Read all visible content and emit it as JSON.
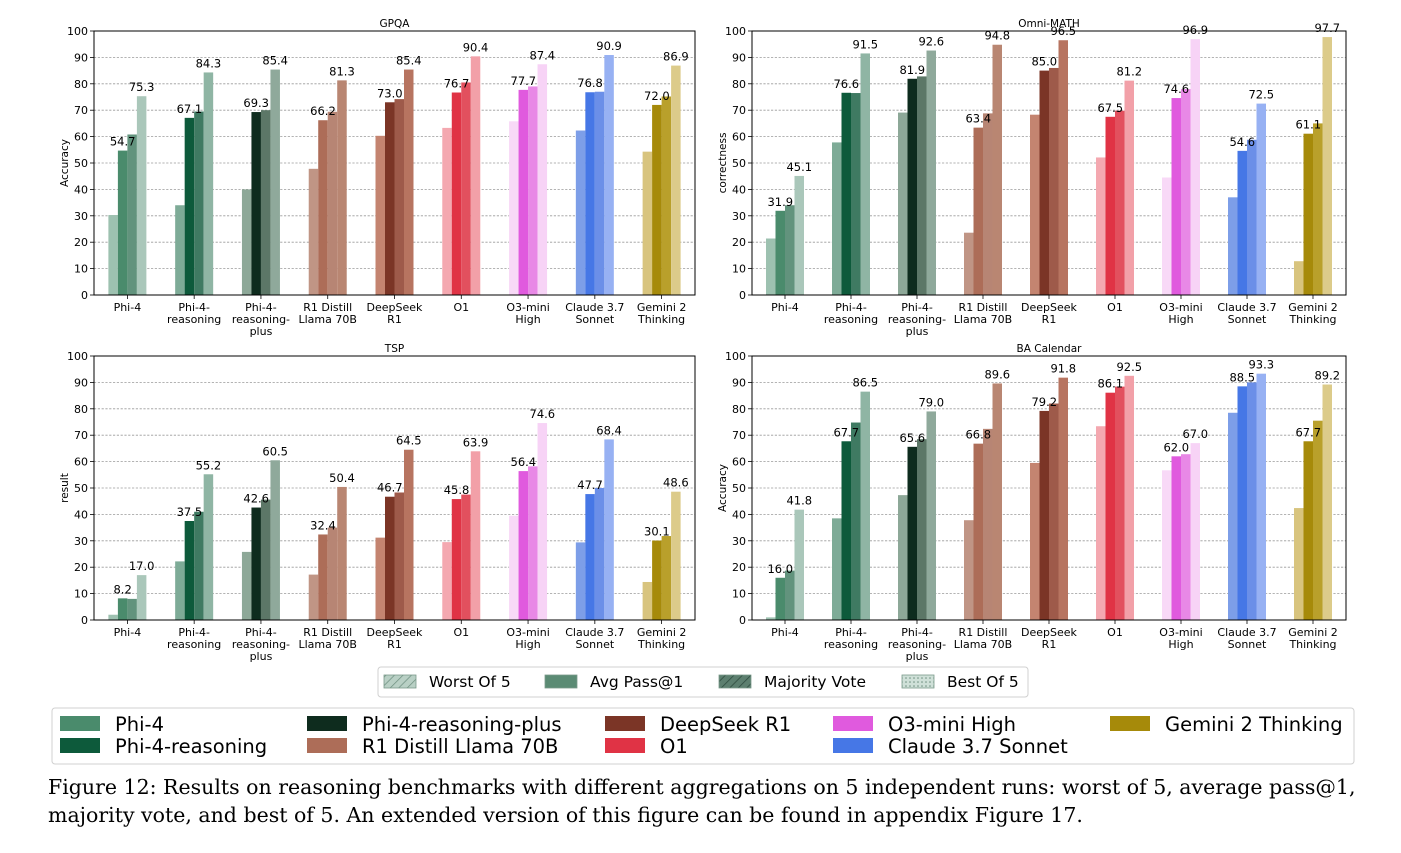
{
  "chart_data": [
    {
      "type": "bar",
      "title": "GPQA",
      "ylabel": "Accuracy",
      "ylim": [
        0,
        100
      ],
      "yticks": [
        "0",
        "10",
        "20",
        "30",
        "40",
        "50",
        "60",
        "70",
        "80",
        "90",
        "100"
      ],
      "categories": [
        "Phi-4",
        "Phi-4-\nreasoning",
        "Phi-4-\nreasoning-\nplus",
        "R1 Distill\nLlama 70B",
        "DeepSeek\nR1",
        "O1",
        "O3-mini\nHigh",
        "Claude 3.7\nSonnet",
        "Gemini 2\nThinking"
      ],
      "series": [
        {
          "name": "Worst Of 5",
          "values": [
            30.3,
            34.0,
            40.0,
            47.8,
            60.3,
            63.3,
            65.8,
            62.3,
            54.3
          ]
        },
        {
          "name": "Avg Pass@1",
          "values": [
            54.7,
            67.1,
            69.3,
            66.2,
            73.0,
            76.7,
            77.7,
            76.8,
            72.0
          ]
        },
        {
          "name": "Majority Vote",
          "values": [
            60.8,
            69.5,
            70.0,
            69.4,
            74.2,
            80.5,
            79.0,
            77.0,
            75.2
          ]
        },
        {
          "name": "Best Of 5",
          "values": [
            75.3,
            84.3,
            85.4,
            81.3,
            85.4,
            90.4,
            87.4,
            90.9,
            86.9
          ]
        }
      ],
      "labels": [
        "54.7",
        "75.3",
        "67.1",
        "84.3",
        "69.3",
        "85.4",
        "66.2",
        "81.3",
        "73.0",
        "85.4",
        "76.7",
        "90.4",
        "77.7",
        "87.4",
        "76.8",
        "90.9",
        "72.0",
        "86.9"
      ]
    },
    {
      "type": "bar",
      "title": "Omni-MATH",
      "ylabel": "correctness",
      "ylim": [
        0,
        100
      ],
      "yticks": [
        "0",
        "10",
        "20",
        "30",
        "40",
        "50",
        "60",
        "70",
        "80",
        "90",
        "100"
      ],
      "categories": [
        "Phi-4",
        "Phi-4-\nreasoning",
        "Phi-4-\nreasoning-\nplus",
        "R1 Distill\nLlama 70B",
        "DeepSeek\nR1",
        "O1",
        "O3-mini\nHigh",
        "Claude 3.7\nSonnet",
        "Gemini 2\nThinking"
      ],
      "series": [
        {
          "name": "Worst Of 5",
          "values": [
            21.4,
            57.8,
            69.1,
            23.6,
            68.3,
            52.1,
            44.5,
            37.0,
            12.8
          ]
        },
        {
          "name": "Avg Pass@1",
          "values": [
            31.9,
            76.6,
            81.9,
            63.4,
            85.0,
            67.5,
            74.6,
            54.6,
            61.1
          ]
        },
        {
          "name": "Majority Vote",
          "values": [
            34.0,
            76.5,
            82.8,
            68.8,
            86.0,
            69.8,
            78.0,
            58.8,
            65.0
          ]
        },
        {
          "name": "Best Of 5",
          "values": [
            45.1,
            91.5,
            92.6,
            94.8,
            96.5,
            81.2,
            96.9,
            72.5,
            97.7
          ]
        }
      ],
      "labels": [
        "31.9",
        "45.1",
        "76.6",
        "91.5",
        "81.9",
        "92.6",
        "63.4",
        "94.8",
        "85.0",
        "96.5",
        "67.5",
        "81.2",
        "74.6",
        "96.9",
        "54.6",
        "72.5",
        "61.1",
        "97.7"
      ]
    },
    {
      "type": "bar",
      "title": "TSP",
      "ylabel": "result",
      "ylim": [
        0,
        100
      ],
      "yticks": [
        "0",
        "10",
        "20",
        "30",
        "40",
        "50",
        "60",
        "70",
        "80",
        "90",
        "100"
      ],
      "categories": [
        "Phi-4",
        "Phi-4-\nreasoning",
        "Phi-4-\nreasoning-\nplus",
        "R1 Distill\nLlama 70B",
        "DeepSeek\nR1",
        "O1",
        "O3-mini\nHigh",
        "Claude 3.7\nSonnet",
        "Gemini 2\nThinking"
      ],
      "series": [
        {
          "name": "Worst Of 5",
          "values": [
            2.0,
            22.2,
            25.8,
            17.2,
            31.2,
            29.5,
            39.5,
            29.4,
            14.4
          ]
        },
        {
          "name": "Avg Pass@1",
          "values": [
            8.2,
            37.5,
            42.6,
            32.4,
            46.7,
            45.8,
            56.4,
            47.7,
            30.1
          ]
        },
        {
          "name": "Majority Vote",
          "values": [
            8.0,
            41.0,
            45.6,
            35.0,
            48.3,
            47.5,
            58.2,
            50.0,
            31.8
          ]
        },
        {
          "name": "Best Of 5",
          "values": [
            17.0,
            55.2,
            60.5,
            50.4,
            64.5,
            63.9,
            74.6,
            68.4,
            48.6
          ]
        }
      ],
      "labels": [
        "8.2",
        "17.0",
        "37.5",
        "55.2",
        "42.6",
        "60.5",
        "32.4",
        "50.4",
        "46.7",
        "64.5",
        "45.8",
        "63.9",
        "56.4",
        "74.6",
        "47.7",
        "68.4",
        "30.1",
        "48.6"
      ]
    },
    {
      "type": "bar",
      "title": "BA Calendar",
      "ylabel": "Accuracy",
      "ylim": [
        0,
        100
      ],
      "yticks": [
        "0",
        "10",
        "20",
        "30",
        "40",
        "50",
        "60",
        "70",
        "80",
        "90",
        "100"
      ],
      "categories": [
        "Phi-4",
        "Phi-4-\nreasoning",
        "Phi-4-\nreasoning-\nplus",
        "R1 Distill\nLlama 70B",
        "DeepSeek\nR1",
        "O1",
        "O3-mini\nHigh",
        "Claude 3.7\nSonnet",
        "Gemini 2\nThinking"
      ],
      "series": [
        {
          "name": "Worst Of 5",
          "values": [
            1.0,
            38.5,
            47.3,
            37.8,
            59.5,
            73.4,
            56.7,
            78.5,
            42.4
          ]
        },
        {
          "name": "Avg Pass@1",
          "values": [
            16.0,
            67.7,
            65.6,
            66.8,
            79.2,
            86.1,
            62.0,
            88.5,
            67.7
          ]
        },
        {
          "name": "Majority Vote",
          "values": [
            18.7,
            74.8,
            68.5,
            72.4,
            82.0,
            88.4,
            62.8,
            90.0,
            75.5
          ]
        },
        {
          "name": "Best Of 5",
          "values": [
            41.8,
            86.5,
            79.0,
            89.6,
            91.8,
            92.5,
            67.0,
            93.3,
            89.2
          ]
        }
      ],
      "labels": [
        "16.0",
        "41.8",
        "67.7",
        "86.5",
        "65.6",
        "79.0",
        "66.8",
        "89.6",
        "79.2",
        "91.8",
        "86.1",
        "92.5",
        "62.0",
        "67.0",
        "88.5",
        "93.3",
        "67.7",
        "89.2"
      ]
    }
  ],
  "aggregation_legend": [
    {
      "label": "Worst Of 5",
      "style": "hatch-diag"
    },
    {
      "label": "Avg Pass@1",
      "style": "solid"
    },
    {
      "label": "Majority Vote",
      "style": "hatch-diag-strong"
    },
    {
      "label": "Best Of 5",
      "style": "dots"
    }
  ],
  "model_legend": [
    {
      "label": "Phi-4",
      "color": "#4a8b6c"
    },
    {
      "label": "Phi-4-reasoning",
      "color": "#0d5a3b"
    },
    {
      "label": "Phi-4-reasoning-plus",
      "color": "#0e2c1e"
    },
    {
      "label": "R1 Distill Llama 70B",
      "color": "#ad6d58"
    },
    {
      "label": "DeepSeek R1",
      "color": "#7b3526"
    },
    {
      "label": "O1",
      "color": "#e03345"
    },
    {
      "label": "O3-mini High",
      "color": "#e05ade"
    },
    {
      "label": "Claude 3.7 Sonnet",
      "color": "#4677e6"
    },
    {
      "label": "Gemini 2 Thinking",
      "color": "#a68a0a"
    }
  ],
  "model_colors": {
    "base": [
      "#4a8b6c",
      "#0d5a3b",
      "#0e2c1e",
      "#ad6d58",
      "#7b3526",
      "#e03345",
      "#e05ade",
      "#4677e6",
      "#a68a0a"
    ],
    "majority": [
      "#62937d",
      "#3f7a62",
      "#5c7767",
      "#b78574",
      "#9e5a4a",
      "#e2505e",
      "#e888e6",
      "#6b8fe8",
      "#b9a02b"
    ],
    "best": [
      "#aac7ba",
      "#8fb5a4",
      "#8fa99b",
      "#b98672",
      "#b77460",
      "#f2a0a8",
      "#f7d3f6",
      "#97b1f3",
      "#dccb8a"
    ],
    "worst": [
      "#9dc1b0",
      "#7eab97",
      "#8da898",
      "#c09585",
      "#c48470",
      "#f4a8b0",
      "#f8d9f7",
      "#7d9ee8",
      "#d8c47e"
    ]
  },
  "caption": {
    "line1": "Figure 12: Results on reasoning benchmarks with different aggregations on 5 independent runs: worst of 5, average pass@1,",
    "line2": "majority vote, and best of 5. An extended version of this figure can be found in appendix Figure 17."
  }
}
